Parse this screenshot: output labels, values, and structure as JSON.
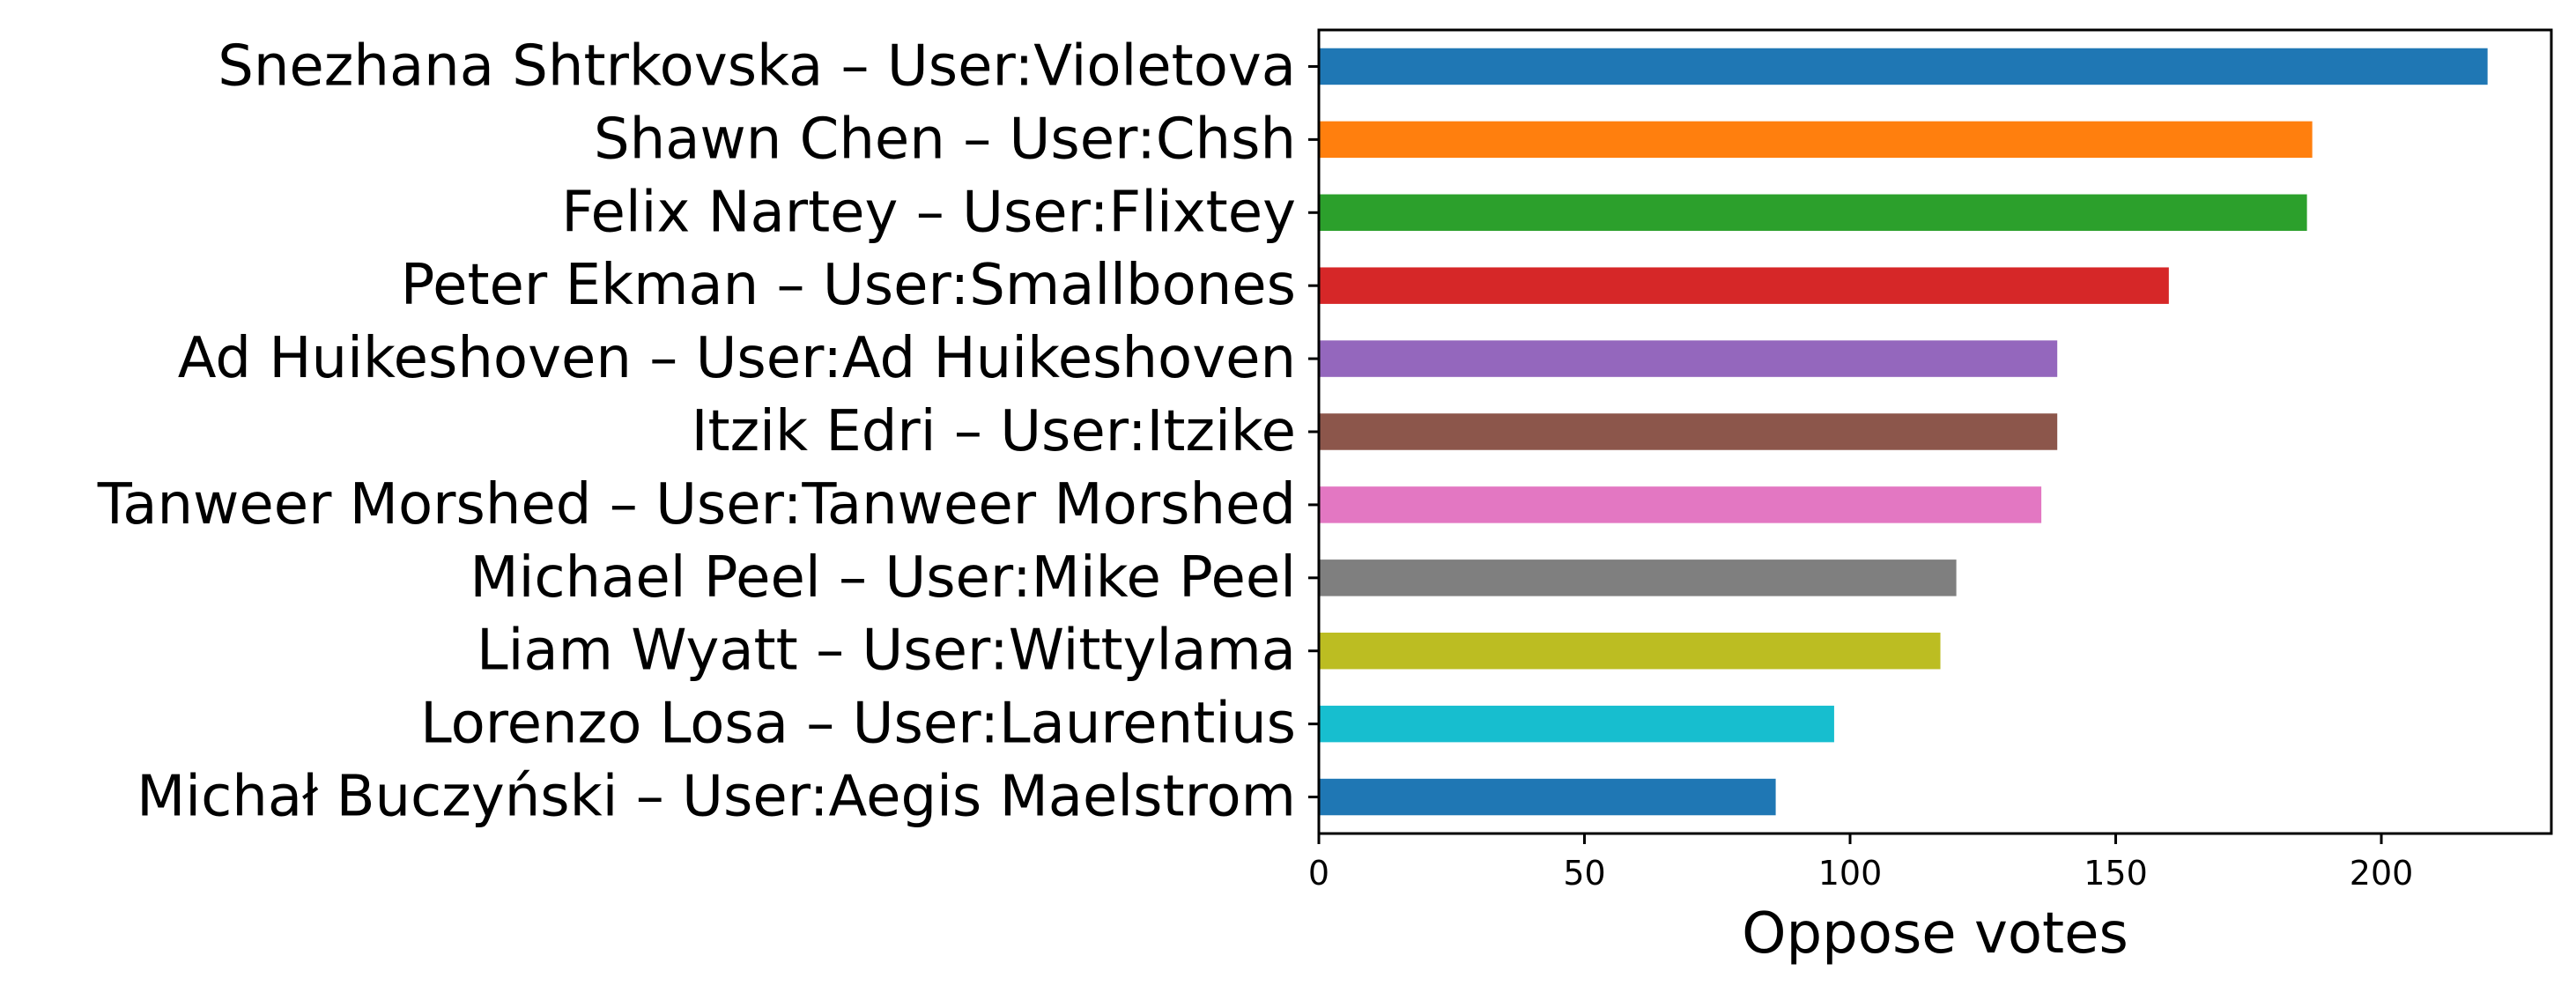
{
  "chart_data": {
    "type": "bar",
    "orientation": "horizontal",
    "title": "",
    "xlabel": "Oppose votes",
    "ylabel": "",
    "xlim": [
      0,
      232
    ],
    "xticks": [
      0,
      50,
      100,
      150,
      200
    ],
    "grid": false,
    "legend": "none",
    "categories": [
      "Snezhana Shtrkovska – User:Violetova",
      "Shawn Chen – User:Chsh",
      "Felix Nartey – User:Flixtey",
      "Peter Ekman – User:Smallbones",
      "Ad Huikeshoven – User:Ad Huikeshoven",
      "Itzik Edri – User:Itzike",
      "Tanweer Morshed – User:Tanweer Morshed",
      "Michael Peel – User:Mike Peel",
      "Liam Wyatt – User:Wittylama",
      "Lorenzo Losa – User:Laurentius",
      "Michał Buczyński – User:Aegis Maelstrom"
    ],
    "values": [
      220,
      187,
      186,
      160,
      139,
      139,
      136,
      120,
      117,
      97,
      86
    ],
    "colors": [
      "#1f77b4",
      "#ff7f0e",
      "#2ca02c",
      "#d62728",
      "#9467bd",
      "#8c564b",
      "#e377c2",
      "#7f7f7f",
      "#bcbd22",
      "#17becf",
      "#1f77b4"
    ]
  }
}
